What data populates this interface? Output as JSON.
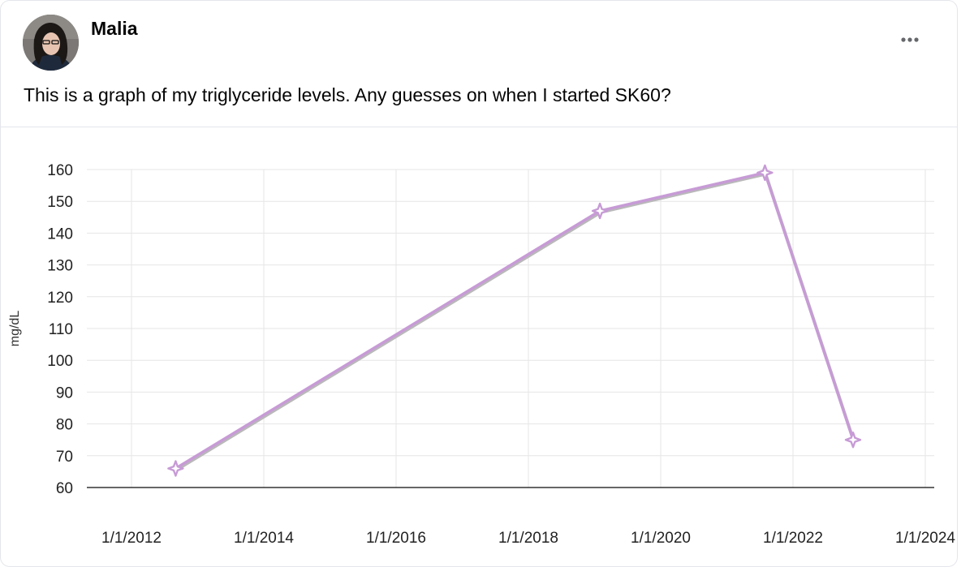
{
  "post": {
    "author": "Malia",
    "text": "This is a graph of my triglyceride levels. Any guesses on when I started SK60?",
    "more_icon": "more-horizontal-icon",
    "avatar_icon": "avatar-photo"
  },
  "chart_data": {
    "type": "line",
    "title": "",
    "xlabel": "",
    "ylabel": "mg/dL",
    "x_ticks": [
      "1/1/2012",
      "1/1/2014",
      "1/1/2016",
      "1/1/2018",
      "1/1/2020",
      "1/1/2022",
      "1/1/2024"
    ],
    "y_ticks": [
      60,
      70,
      80,
      90,
      100,
      110,
      120,
      130,
      140,
      150,
      160
    ],
    "xlim": [
      "2011-01-01",
      "2024-01-01"
    ],
    "ylim": [
      60,
      160
    ],
    "grid": true,
    "legend": "none",
    "series": [
      {
        "color": "#c79bd6",
        "marker": "four-point-star",
        "points": [
          {
            "x": "2012-09-01",
            "y": 66
          },
          {
            "x": "2019-02-01",
            "y": 147
          },
          {
            "x": "2021-08-01",
            "y": 159
          },
          {
            "x": "2022-12-01",
            "y": 75
          }
        ]
      }
    ]
  }
}
